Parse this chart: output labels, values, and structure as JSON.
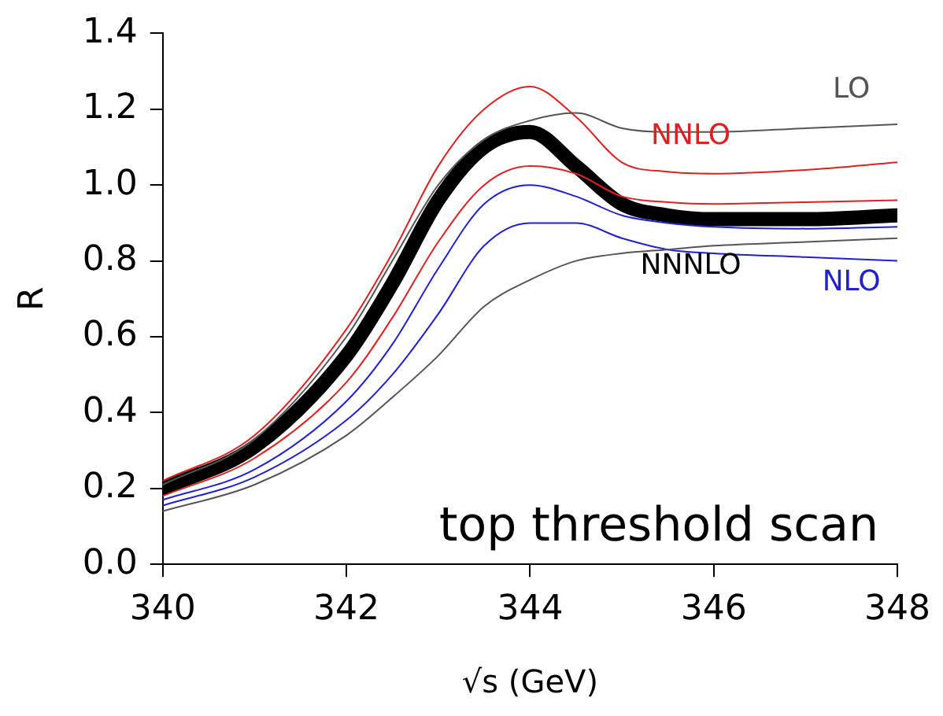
{
  "chart_data": {
    "type": "line",
    "xlabel": "√s (GeV)",
    "ylabel": "R",
    "x": [
      340,
      341,
      342,
      342.5,
      343,
      343.5,
      344,
      344.5,
      345,
      345.5,
      346,
      347,
      348
    ],
    "xlim": [
      340,
      348
    ],
    "xticks": [
      340,
      342,
      344,
      346,
      348
    ],
    "ylim": [
      0,
      1.4
    ],
    "yticks": [
      {
        "value": 0,
        "label": "0.0"
      },
      0.2,
      0.4,
      0.6,
      0.8,
      {
        "value": 1,
        "label": "1.0"
      },
      1.2,
      1.4
    ],
    "grid": false,
    "legend": false,
    "marker": "none",
    "line_style": "solid",
    "series": [
      {
        "name": "LO",
        "color": "#555555",
        "values": [
          0.21,
          0.33,
          0.6,
          0.8,
          1.0,
          1.12,
          1.17,
          1.19,
          1.15,
          1.14,
          1.14,
          1.15,
          1.16
        ]
      },
      {
        "color": "#555555",
        "values": [
          0.14,
          0.21,
          0.34,
          0.44,
          0.55,
          0.68,
          0.75,
          0.8,
          0.82,
          0.83,
          0.84,
          0.85,
          0.86
        ]
      },
      {
        "name": "NNLO",
        "color": "#e02020",
        "values": [
          0.22,
          0.34,
          0.62,
          0.82,
          1.05,
          1.2,
          1.26,
          1.18,
          1.06,
          1.035,
          1.03,
          1.04,
          1.06
        ]
      },
      {
        "color": "#e02020",
        "values": [
          0.18,
          0.28,
          0.48,
          0.65,
          0.85,
          1.0,
          1.05,
          1.03,
          0.97,
          0.955,
          0.95,
          0.955,
          0.96
        ]
      },
      {
        "color": "#2020d0",
        "values": [
          0.17,
          0.25,
          0.43,
          0.58,
          0.78,
          0.95,
          1.0,
          0.97,
          0.92,
          0.9,
          0.89,
          0.885,
          0.89
        ]
      },
      {
        "name": "NLO",
        "color": "#2020d0",
        "values": [
          0.155,
          0.23,
          0.38,
          0.5,
          0.66,
          0.84,
          0.9,
          0.9,
          0.86,
          0.83,
          0.82,
          0.81,
          0.8
        ]
      },
      {
        "name": "NNNLO",
        "color": "#000000",
        "values": [
          0.2,
          0.31,
          0.55,
          0.74,
          0.96,
          1.1,
          1.14,
          1.05,
          0.95,
          0.92,
          0.91,
          0.91,
          0.92
        ]
      }
    ],
    "annotations": [
      "top threshold scan"
    ]
  }
}
